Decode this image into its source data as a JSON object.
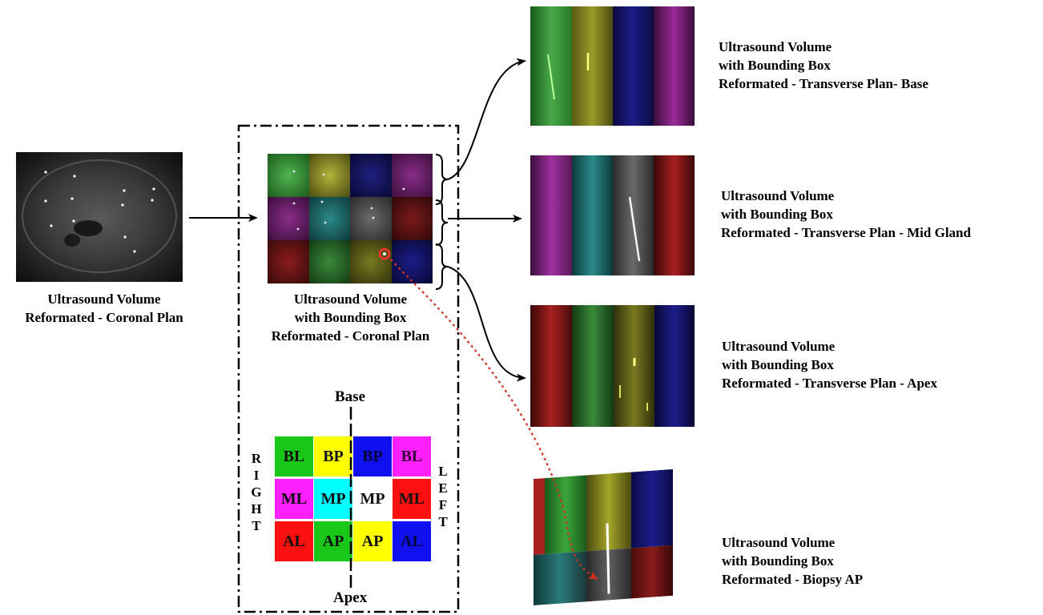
{
  "captions": {
    "coronal_plain": [
      "Ultrasound Volume",
      "Reformated - Coronal Plan"
    ],
    "coronal_bbox": [
      "Ultrasound Volume",
      "with Bounding Box",
      "Reformated - Coronal Plan"
    ],
    "transverse_base": [
      "Ultrasound Volume",
      "with Bounding Box",
      "Reformated - Transverse Plan- Base"
    ],
    "transverse_mid": [
      "Ultrasound Volume",
      "with Bounding Box",
      "Reformated - Transverse Plan - Mid Gland"
    ],
    "transverse_apex": [
      "Ultrasound Volume",
      "with Bounding Box",
      "Reformated - Transverse Plan - Apex"
    ],
    "biopsy_ap": [
      "Ultrasound Volume",
      "with Bounding Box",
      "Reformated - Biopsy AP"
    ]
  },
  "legend": {
    "top_label": "Base",
    "bottom_label": "Apex",
    "left_label": [
      "R",
      "I",
      "G",
      "H",
      "T"
    ],
    "right_label": [
      "L",
      "E",
      "F",
      "T"
    ],
    "rows": [
      [
        {
          "text": "BL",
          "bg": "#18c718",
          "fg": "#111111"
        },
        {
          "text": "BP",
          "bg": "#ffff00",
          "fg": "#111111"
        },
        {
          "text": "BP",
          "bg": "#1010f0",
          "fg": "#06063a"
        },
        {
          "text": "BL",
          "bg": "#ff20ff",
          "fg": "#3a003a"
        }
      ],
      [
        {
          "text": "ML",
          "bg": "#ff20ff",
          "fg": "#111111"
        },
        {
          "text": "MP",
          "bg": "#00ffff",
          "fg": "#111111"
        },
        {
          "text": "MP",
          "bg": "#ffffff",
          "fg": "#111111"
        },
        {
          "text": "ML",
          "bg": "#ff1010",
          "fg": "#111111"
        }
      ],
      [
        {
          "text": "AL",
          "bg": "#ff1010",
          "fg": "#111111"
        },
        {
          "text": "AP",
          "bg": "#18c718",
          "fg": "#111111"
        },
        {
          "text": "AP",
          "bg": "#ffff00",
          "fg": "#111111"
        },
        {
          "text": "AL",
          "bg": "#1010f0",
          "fg": "#06063a"
        }
      ]
    ]
  },
  "colors": {
    "green": "#3aa53a",
    "yellow": "#b5b52a",
    "blue": "#1c1c8c",
    "magenta": "#a030a0",
    "red": "#a82020",
    "cyan": "#2a9a9a",
    "gray": "#707070",
    "dark_olive": "#6b6b1a",
    "arrow": "#000000",
    "biopsy_path": "#d03020"
  }
}
